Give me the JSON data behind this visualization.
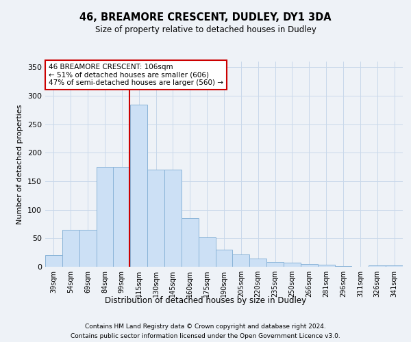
{
  "title": "46, BREAMORE CRESCENT, DUDLEY, DY1 3DA",
  "subtitle": "Size of property relative to detached houses in Dudley",
  "xlabel": "Distribution of detached houses by size in Dudley",
  "ylabel": "Number of detached properties",
  "categories": [
    "39sqm",
    "54sqm",
    "69sqm",
    "84sqm",
    "99sqm",
    "115sqm",
    "130sqm",
    "145sqm",
    "160sqm",
    "175sqm",
    "190sqm",
    "205sqm",
    "220sqm",
    "235sqm",
    "250sqm",
    "266sqm",
    "281sqm",
    "296sqm",
    "311sqm",
    "326sqm",
    "341sqm"
  ],
  "bar_values": [
    20,
    65,
    65,
    175,
    175,
    285,
    170,
    170,
    85,
    52,
    30,
    22,
    15,
    9,
    7,
    5,
    4,
    1,
    0,
    2,
    2
  ],
  "bar_color": "#cce0f5",
  "bar_edge_color": "#8ab4d8",
  "grid_color": "#c8d8ea",
  "bg_color": "#eef2f7",
  "annotation_text": "46 BREAMORE CRESCENT: 106sqm\n← 51% of detached houses are smaller (606)\n47% of semi-detached houses are larger (560) →",
  "vline_color": "#cc0000",
  "footer1": "Contains HM Land Registry data © Crown copyright and database right 2024.",
  "footer2": "Contains public sector information licensed under the Open Government Licence v3.0.",
  "ylim": [
    0,
    360
  ],
  "yticks": [
    0,
    50,
    100,
    150,
    200,
    250,
    300,
    350
  ]
}
